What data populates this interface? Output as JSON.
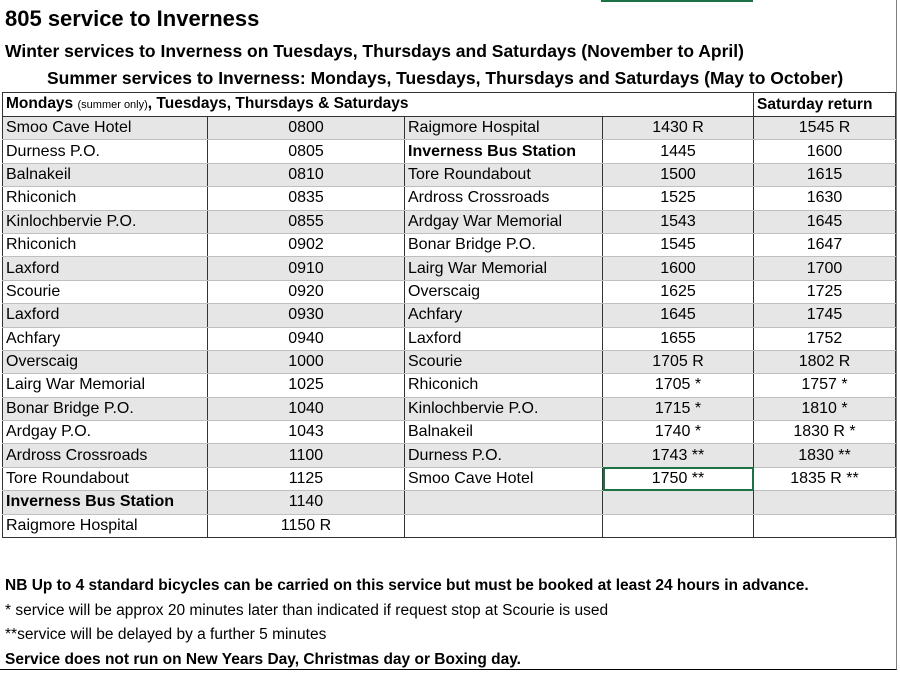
{
  "title": "805 service to Inverness",
  "subtitle_winter": "Winter services to Inverness on Tuesdays, Thursdays and Saturdays (November to April)",
  "subtitle_summer": "Summer services to Inverness: Mondays, Tuesdays, Thursdays and Saturdays (May to October)",
  "table": {
    "header_days_main": "Mondays",
    "header_days_note": "(summer only)",
    "header_days_rest": ", Tuesdays, Thursdays & Saturdays",
    "header_return": "Saturday return",
    "rows": [
      {
        "s1": "Smoo Cave Hotel",
        "t1": "0800",
        "s2": "Raigmore Hospital",
        "t2": "1430 R",
        "t3": "1545 R"
      },
      {
        "s1": "Durness P.O.",
        "t1": "0805",
        "s2": "Inverness Bus Station",
        "t2": "1445",
        "t3": "1600"
      },
      {
        "s1": "Balnakeil",
        "t1": "0810",
        "s2": "Tore Roundabout",
        "t2": "1500",
        "t3": "1615"
      },
      {
        "s1": "Rhiconich",
        "t1": "0835",
        "s2": "Ardross Crossroads",
        "t2": "1525",
        "t3": "1630"
      },
      {
        "s1": "Kinlochbervie P.O.",
        "t1": "0855",
        "s2": "Ardgay War Memorial",
        "t2": "1543",
        "t3": "1645"
      },
      {
        "s1": "Rhiconich",
        "t1": "0902",
        "s2": "Bonar Bridge P.O.",
        "t2": "1545",
        "t3": "1647"
      },
      {
        "s1": "Laxford",
        "t1": "0910",
        "s2": "Lairg War Memorial",
        "t2": "1600",
        "t3": "1700"
      },
      {
        "s1": "Scourie",
        "t1": "0920",
        "s2": "Overscaig",
        "t2": "1625",
        "t3": "1725"
      },
      {
        "s1": "Laxford",
        "t1": "0930",
        "s2": "Achfary",
        "t2": "1645",
        "t3": "1745"
      },
      {
        "s1": "Achfary",
        "t1": "0940",
        "s2": "Laxford",
        "t2": "1655",
        "t3": "1752"
      },
      {
        "s1": "Overscaig",
        "t1": "1000",
        "s2": "Scourie",
        "t2": "1705 R",
        "t3": "1802 R"
      },
      {
        "s1": "Lairg War Memorial",
        "t1": "1025",
        "s2": "Rhiconich",
        "t2": "1705 *",
        "t3": "1757 *"
      },
      {
        "s1": "Bonar Bridge P.O.",
        "t1": "1040",
        "s2": "Kinlochbervie P.O.",
        "t2": "1715 *",
        "t3": "1810 *"
      },
      {
        "s1": "Ardgay P.O.",
        "t1": "1043",
        "s2": "Balnakeil",
        "t2": "1740 *",
        "t3": "1830 R *"
      },
      {
        "s1": "Ardross Crossroads",
        "t1": "1100",
        "s2": "Durness P.O.",
        "t2": "1743 **",
        "t3": "1830 **"
      },
      {
        "s1": "Tore Roundabout",
        "t1": "1125",
        "s2": "Smoo Cave Hotel",
        "t2": "1750 **",
        "t3": "1835 R **"
      },
      {
        "s1": "Inverness Bus Station",
        "t1": "1140",
        "s2": "",
        "t2": "",
        "t3": ""
      },
      {
        "s1": "Raigmore Hospital",
        "t1": "1150 R",
        "s2": "",
        "t2": "",
        "t3": ""
      }
    ]
  },
  "notes": {
    "bicycles": "NB Up to 4 standard bicycles can be carried on this service but must be booked at least 24 hours in advance.",
    "star": "* service will be approx 20 minutes later than indicated if request stop at Scourie is used",
    "double_star": "**service will be delayed by a further 5 minutes",
    "no_service": "Service does not run on New Years Day, Christmas day or Boxing day."
  },
  "colors": {
    "row_shade": "#e7e6e6",
    "selection": "#1e7145"
  }
}
